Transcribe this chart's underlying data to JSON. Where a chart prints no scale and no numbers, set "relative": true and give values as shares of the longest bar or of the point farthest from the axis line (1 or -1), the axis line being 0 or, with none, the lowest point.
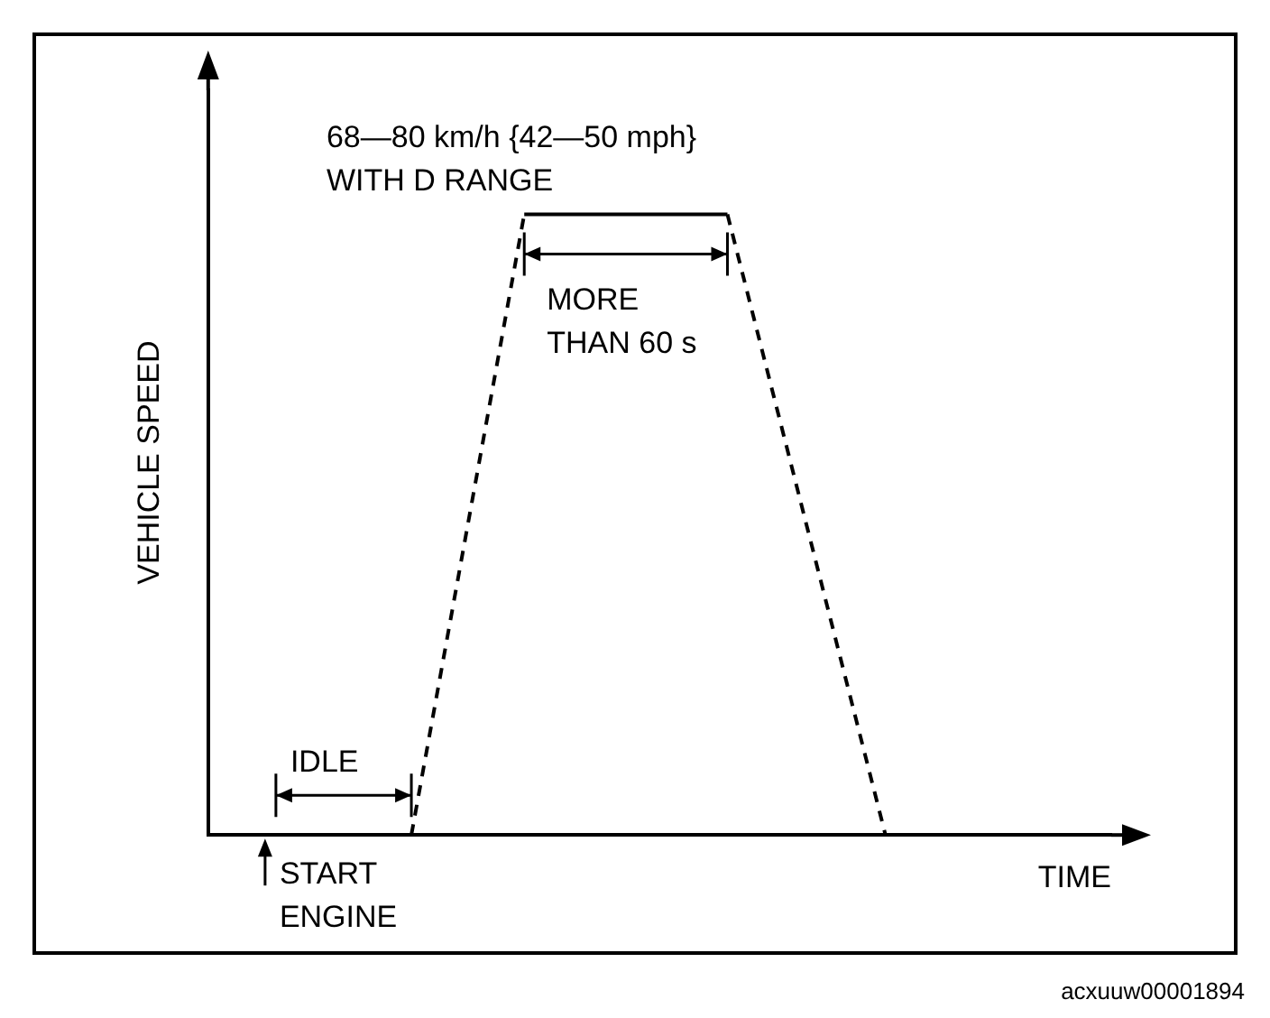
{
  "chart_data": {
    "type": "line",
    "relative": true,
    "xlabel": "TIME",
    "ylabel": "VEHICLE SPEED",
    "grid": false,
    "tick_labels": false,
    "marker": "none",
    "categories": [
      null,
      null,
      null,
      null,
      null,
      null,
      null,
      null,
      null,
      null,
      null,
      null,
      null,
      null,
      null,
      null,
      null,
      null,
      null,
      null,
      null,
      null,
      null,
      null,
      null,
      null,
      null,
      null,
      null,
      null,
      null,
      null,
      null,
      null,
      null,
      null,
      null,
      null,
      null,
      null,
      null
    ],
    "series": [
      {
        "color": "#000000",
        "line_style": "dashed",
        "values": [
          null,
          null,
          null,
          null,
          null,
          null,
          null,
          null,
          null,
          0,
          null,
          null,
          null,
          null,
          1,
          null,
          null,
          null,
          null,
          null,
          null,
          null,
          null,
          null,
          null,
          null,
          null,
          null,
          null,
          null,
          null,
          null,
          null,
          null,
          null,
          null,
          null,
          null,
          null,
          null,
          null
        ]
      },
      {
        "color": "#000000",
        "line_style": "solid",
        "values": [
          null,
          null,
          null,
          null,
          null,
          null,
          null,
          null,
          null,
          null,
          null,
          null,
          null,
          null,
          1,
          null,
          null,
          null,
          null,
          null,
          null,
          null,
          null,
          1,
          null,
          null,
          null,
          null,
          null,
          null,
          null,
          null,
          null,
          null,
          null,
          null,
          null,
          null,
          null,
          null,
          null
        ]
      },
      {
        "color": "#000000",
        "line_style": "dashed",
        "values": [
          null,
          null,
          null,
          null,
          null,
          null,
          null,
          null,
          null,
          null,
          null,
          null,
          null,
          null,
          null,
          null,
          null,
          null,
          null,
          null,
          null,
          null,
          null,
          1,
          null,
          null,
          null,
          null,
          null,
          null,
          0,
          null,
          null,
          null,
          null,
          null,
          null,
          null,
          null,
          null,
          null
        ]
      }
    ],
    "annotations": [
      "68—80 km/h {42—50 mph}\nWITH D RANGE",
      "MORE\nTHAN 60 s",
      "IDLE",
      "START\nENGINE",
      "acxuuw00001894"
    ]
  }
}
